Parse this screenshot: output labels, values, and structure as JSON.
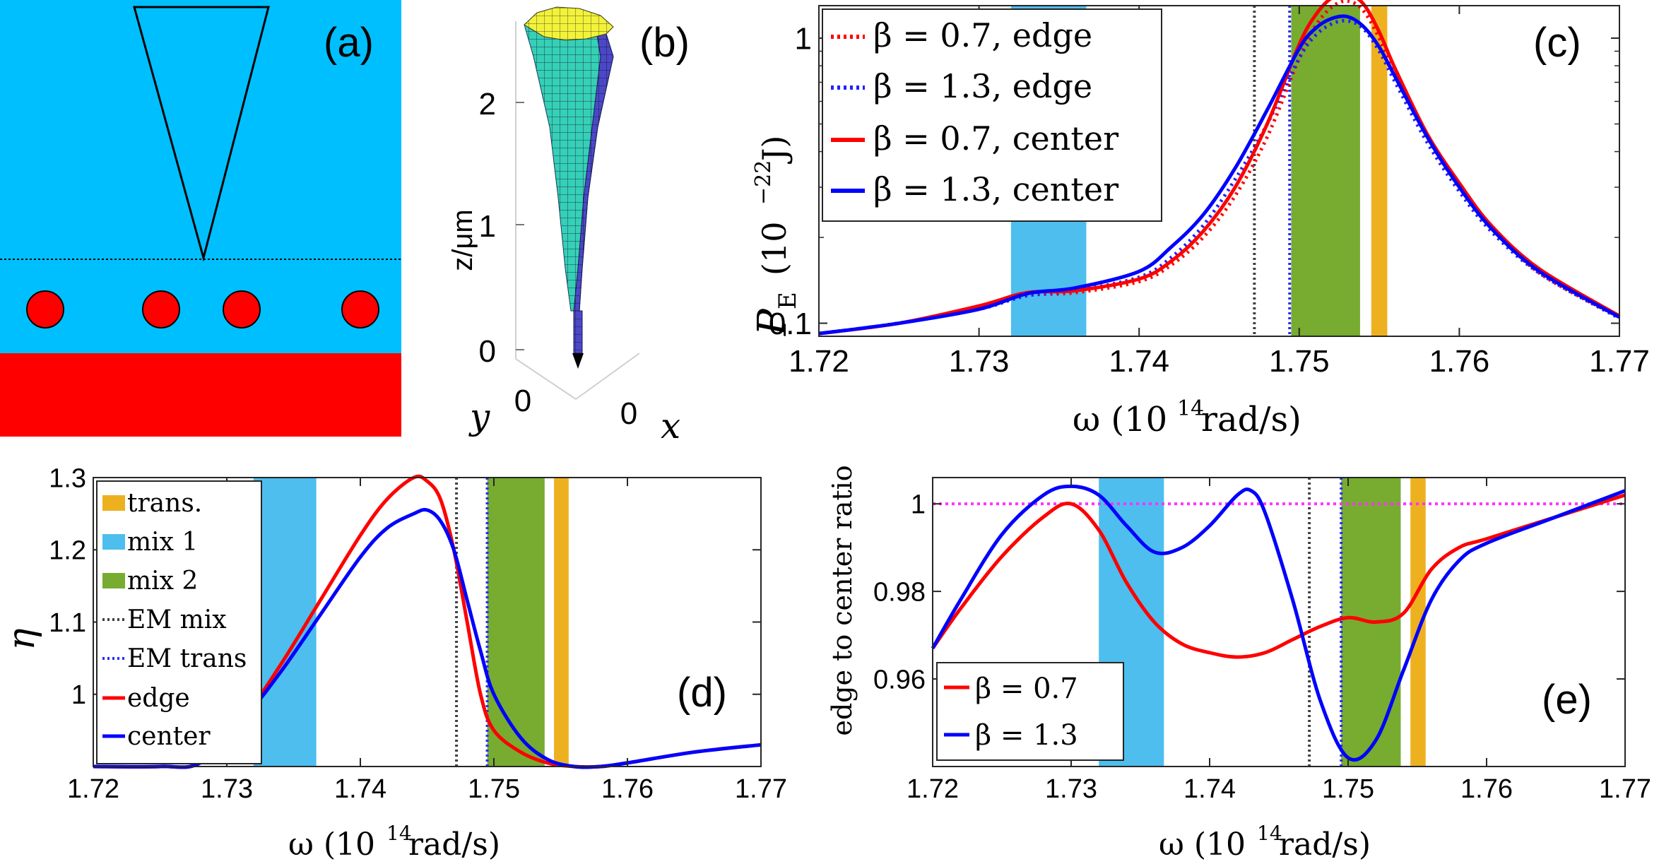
{
  "panels": {
    "a": {
      "label": "(a)",
      "colors": {
        "medium": "#00BFFF",
        "substrate": "#FF0000",
        "particle": "#FF0000"
      },
      "particles": 4
    },
    "b": {
      "label": "(b)",
      "zlabel": "z/μm",
      "ylabel": "y",
      "xlabel": "x",
      "zticks": [
        "0",
        "1",
        "2"
      ],
      "yticks": [
        "0"
      ],
      "xticks": [
        "0"
      ]
    }
  },
  "chart_data": [
    {
      "id": "c",
      "type": "line",
      "panel_label": "(c)",
      "ylabel_main": "P",
      "ylabel_sub": "E",
      "ylabel_unit": "(10",
      "ylabel_exp": "−22",
      "ylabel_unit2": " J)",
      "xlabel_main": "ω (10",
      "xlabel_exp": "14",
      "xlabel_unit": " rad/s)",
      "yscale": "log",
      "xlim": [
        1.72,
        1.77
      ],
      "ylim": [
        0.09,
        1.3
      ],
      "xticks": [
        1.72,
        1.73,
        1.74,
        1.75,
        1.76,
        1.77
      ],
      "xticklabels": [
        "1.72",
        "1.73",
        "1.74",
        "1.75",
        "1.76",
        "1.77"
      ],
      "yticks": [
        0.1,
        1
      ],
      "yticklabels": [
        "0.1",
        "1"
      ],
      "bands": [
        {
          "name": "mix 1",
          "from": 1.732,
          "to": 1.7367,
          "color": "#4DBEEE"
        },
        {
          "name": "mix 2",
          "from": 1.7495,
          "to": 1.7538,
          "color": "#77AC30"
        },
        {
          "name": "trans.",
          "from": 1.7545,
          "to": 1.7555,
          "color": "#EDB120"
        }
      ],
      "vlines": [
        {
          "name": "EM mix",
          "x": 1.7472,
          "color": "#404040"
        },
        {
          "name": "EM trans",
          "x": 1.7494,
          "color": "#2B2BFF"
        }
      ],
      "legend_location": "top-left",
      "series": [
        {
          "name": "β = 0.7, edge",
          "color": "#FF0000",
          "style": "dotted",
          "x": [
            1.72,
            1.725,
            1.73,
            1.733,
            1.736,
            1.74,
            1.742,
            1.744,
            1.746,
            1.748,
            1.75,
            1.751,
            1.752,
            1.753,
            1.754,
            1.755,
            1.756,
            1.758,
            1.76,
            1.762,
            1.765,
            1.77
          ],
          "values": [
            0.092,
            0.1,
            0.113,
            0.125,
            0.128,
            0.14,
            0.16,
            0.2,
            0.28,
            0.45,
            0.85,
            1.1,
            1.28,
            1.35,
            1.25,
            1.0,
            0.75,
            0.45,
            0.3,
            0.22,
            0.15,
            0.105
          ]
        },
        {
          "name": "β = 1.3, edge",
          "color": "#2222FF",
          "style": "dotted",
          "x": [
            1.72,
            1.725,
            1.73,
            1.733,
            1.736,
            1.74,
            1.742,
            1.744,
            1.746,
            1.748,
            1.75,
            1.751,
            1.752,
            1.753,
            1.754,
            1.755,
            1.756,
            1.758,
            1.76,
            1.762,
            1.765,
            1.77
          ],
          "values": [
            0.092,
            0.1,
            0.112,
            0.125,
            0.13,
            0.145,
            0.17,
            0.22,
            0.32,
            0.5,
            0.85,
            1.02,
            1.12,
            1.15,
            1.08,
            0.9,
            0.7,
            0.43,
            0.29,
            0.21,
            0.15,
            0.104
          ]
        },
        {
          "name": "β = 0.7, center",
          "color": "#FF0000",
          "style": "solid",
          "x": [
            1.72,
            1.725,
            1.73,
            1.733,
            1.736,
            1.74,
            1.742,
            1.744,
            1.746,
            1.748,
            1.75,
            1.751,
            1.752,
            1.753,
            1.754,
            1.755,
            1.756,
            1.758,
            1.76,
            1.762,
            1.765,
            1.77
          ],
          "values": [
            0.092,
            0.1,
            0.115,
            0.128,
            0.13,
            0.143,
            0.165,
            0.21,
            0.3,
            0.5,
            0.95,
            1.2,
            1.38,
            1.43,
            1.32,
            1.05,
            0.78,
            0.46,
            0.31,
            0.22,
            0.155,
            0.106
          ]
        },
        {
          "name": "β = 1.3, center",
          "color": "#0000FF",
          "style": "solid",
          "x": [
            1.72,
            1.725,
            1.73,
            1.733,
            1.736,
            1.74,
            1.742,
            1.744,
            1.746,
            1.748,
            1.75,
            1.751,
            1.752,
            1.753,
            1.754,
            1.755,
            1.756,
            1.758,
            1.76,
            1.762,
            1.765,
            1.77
          ],
          "values": [
            0.092,
            0.1,
            0.112,
            0.127,
            0.133,
            0.152,
            0.185,
            0.24,
            0.35,
            0.56,
            0.92,
            1.08,
            1.17,
            1.19,
            1.1,
            0.93,
            0.73,
            0.45,
            0.3,
            0.215,
            0.152,
            0.105
          ]
        }
      ]
    },
    {
      "id": "d",
      "type": "line",
      "panel_label": "(d)",
      "ylabel_main": "η",
      "xlabel_main": "ω (10",
      "xlabel_exp": "14",
      "xlabel_unit": " rad/s)",
      "xlim": [
        1.72,
        1.77
      ],
      "ylim": [
        0.9,
        1.3
      ],
      "xticks": [
        1.72,
        1.73,
        1.74,
        1.75,
        1.76,
        1.77
      ],
      "xticklabels": [
        "1.72",
        "1.73",
        "1.74",
        "1.75",
        "1.76",
        "1.77"
      ],
      "yticks": [
        1.0,
        1.1,
        1.2,
        1.3
      ],
      "yticklabels": [
        "1",
        "1.1",
        "1.2",
        "1.3"
      ],
      "bands": [
        {
          "name": "mix 1",
          "from": 1.732,
          "to": 1.7367,
          "color": "#4DBEEE"
        },
        {
          "name": "mix 2",
          "from": 1.7495,
          "to": 1.7538,
          "color": "#77AC30"
        },
        {
          "name": "trans.",
          "from": 1.7545,
          "to": 1.7556,
          "color": "#EDB120"
        }
      ],
      "vlines": [
        {
          "name": "EM mix",
          "x": 1.7472,
          "color": "#404040"
        },
        {
          "name": "EM trans",
          "x": 1.7495,
          "color": "#2B2BFF"
        }
      ],
      "legend_location": "left",
      "legend": [
        "trans.",
        "mix 1",
        "mix 2",
        "EM mix",
        "EM trans",
        "edge",
        "center"
      ],
      "series": [
        {
          "name": "edge",
          "color": "#FF0000",
          "style": "solid",
          "x": [
            1.72,
            1.725,
            1.728,
            1.731,
            1.734,
            1.737,
            1.74,
            1.742,
            1.744,
            1.745,
            1.746,
            1.747,
            1.748,
            1.749,
            1.75,
            1.752,
            1.754,
            1.756,
            1.758,
            1.76,
            1.765,
            1.77
          ],
          "values": [
            0.9,
            0.9,
            0.905,
            0.96,
            1.04,
            1.13,
            1.22,
            1.27,
            1.3,
            1.295,
            1.27,
            1.2,
            1.1,
            1.0,
            0.95,
            0.92,
            0.905,
            0.9,
            0.9,
            0.905,
            0.92,
            0.93
          ]
        },
        {
          "name": "center",
          "color": "#0000FF",
          "style": "solid",
          "x": [
            1.72,
            1.725,
            1.728,
            1.731,
            1.734,
            1.737,
            1.74,
            1.742,
            1.744,
            1.745,
            1.746,
            1.747,
            1.748,
            1.749,
            1.75,
            1.752,
            1.754,
            1.756,
            1.758,
            1.76,
            1.765,
            1.77
          ],
          "values": [
            0.9,
            0.9,
            0.905,
            0.96,
            1.03,
            1.11,
            1.19,
            1.23,
            1.25,
            1.255,
            1.24,
            1.2,
            1.13,
            1.06,
            1.0,
            0.94,
            0.91,
            0.9,
            0.9,
            0.905,
            0.92,
            0.93
          ]
        }
      ]
    },
    {
      "id": "e",
      "type": "line",
      "panel_label": "(e)",
      "ylabel_main": "edge to center ratio",
      "xlabel_main": "ω (10",
      "xlabel_exp": "14",
      "xlabel_unit": " rad/s)",
      "xlim": [
        1.72,
        1.77
      ],
      "ylim": [
        0.94,
        1.006
      ],
      "xticks": [
        1.72,
        1.73,
        1.74,
        1.75,
        1.76,
        1.77
      ],
      "xticklabels": [
        "1.72",
        "1.73",
        "1.74",
        "1.75",
        "1.76",
        "1.77"
      ],
      "yticks": [
        0.96,
        0.98,
        1.0
      ],
      "yticklabels": [
        "0.96",
        "0.98",
        "1"
      ],
      "bands": [
        {
          "name": "mix 1",
          "from": 1.732,
          "to": 1.7367,
          "color": "#4DBEEE"
        },
        {
          "name": "mix 2",
          "from": 1.7495,
          "to": 1.7538,
          "color": "#77AC30"
        },
        {
          "name": "trans.",
          "from": 1.7545,
          "to": 1.7556,
          "color": "#EDB120"
        }
      ],
      "vlines": [
        {
          "name": "EM mix",
          "x": 1.7472,
          "color": "#404040"
        },
        {
          "name": "EM trans",
          "x": 1.7495,
          "color": "#2B2BFF"
        }
      ],
      "hline": {
        "y": 1.0,
        "color": "#FF33FF"
      },
      "legend_location": "bottom-left",
      "series": [
        {
          "name": "β = 0.7",
          "color": "#FF0000",
          "style": "solid",
          "x": [
            1.72,
            1.722,
            1.725,
            1.728,
            1.73,
            1.732,
            1.734,
            1.736,
            1.738,
            1.74,
            1.742,
            1.744,
            1.746,
            1.748,
            1.75,
            1.752,
            1.754,
            1.756,
            1.758,
            1.76,
            1.765,
            1.77
          ],
          "values": [
            0.967,
            0.976,
            0.988,
            0.997,
            1.0,
            0.994,
            0.982,
            0.973,
            0.968,
            0.966,
            0.965,
            0.966,
            0.969,
            0.972,
            0.974,
            0.973,
            0.975,
            0.985,
            0.99,
            0.992,
            0.997,
            1.002
          ]
        },
        {
          "name": "β = 1.3",
          "color": "#0000FF",
          "style": "solid",
          "x": [
            1.72,
            1.722,
            1.725,
            1.728,
            1.73,
            1.732,
            1.734,
            1.736,
            1.738,
            1.74,
            1.742,
            1.743,
            1.744,
            1.746,
            1.748,
            1.75,
            1.752,
            1.754,
            1.756,
            1.758,
            1.76,
            1.765,
            1.77
          ],
          "values": [
            0.967,
            0.978,
            0.993,
            1.002,
            1.004,
            1.002,
            0.995,
            0.989,
            0.99,
            0.995,
            1.002,
            1.003,
            0.998,
            0.978,
            0.955,
            0.942,
            0.946,
            0.962,
            0.978,
            0.987,
            0.991,
            0.997,
            1.003
          ]
        }
      ]
    }
  ]
}
